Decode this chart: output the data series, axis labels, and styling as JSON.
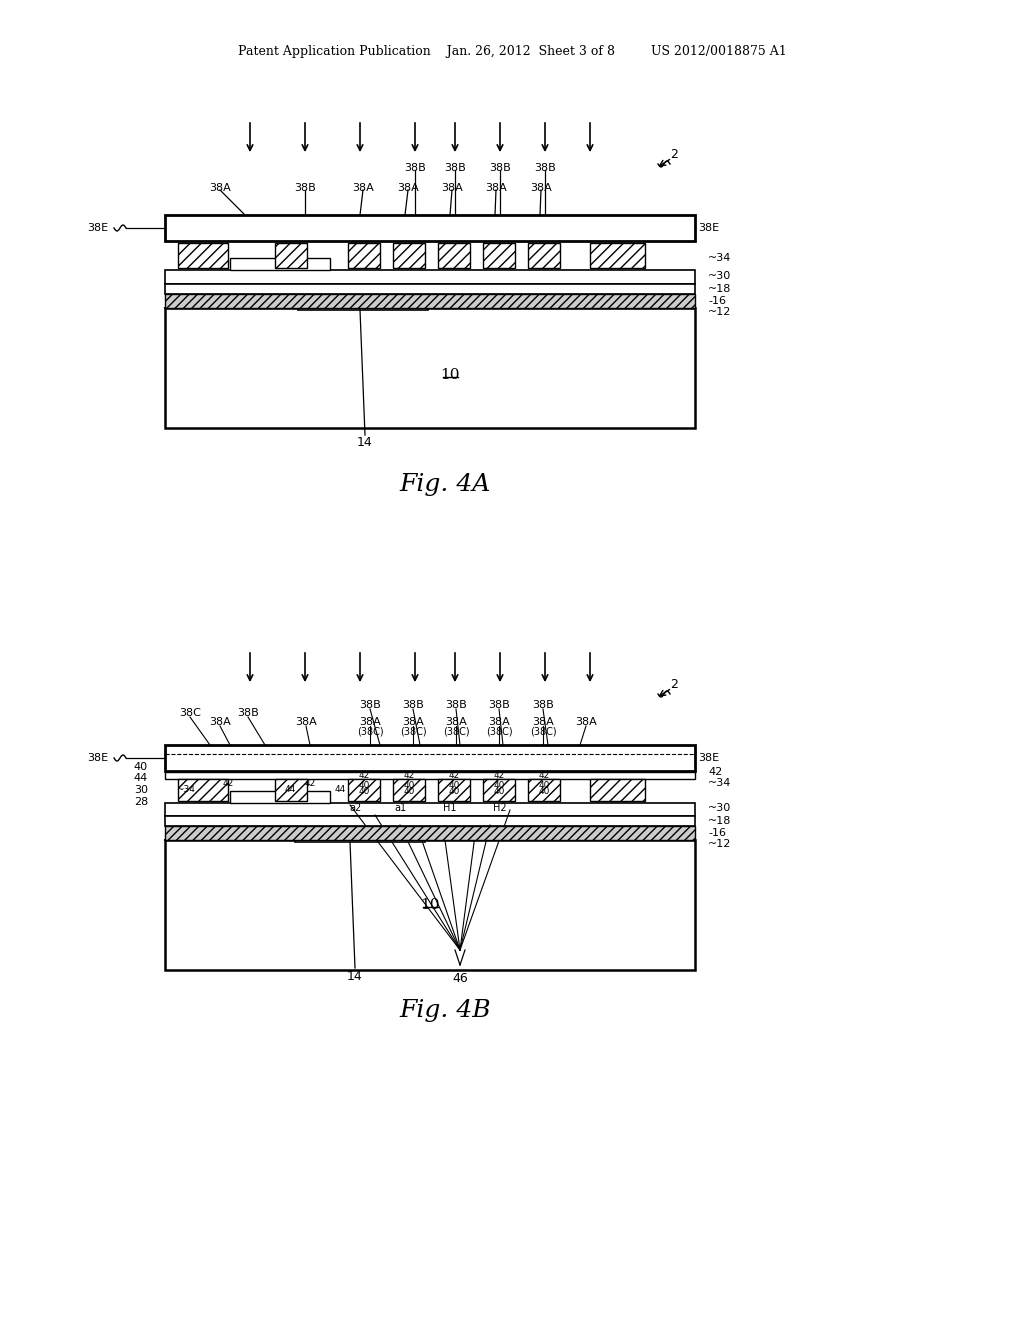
{
  "bg_color": "#ffffff",
  "line_color": "#000000",
  "header_text": "Patent Application Publication    Jan. 26, 2012  Sheet 3 of 8         US 2012/0018875 A1"
}
